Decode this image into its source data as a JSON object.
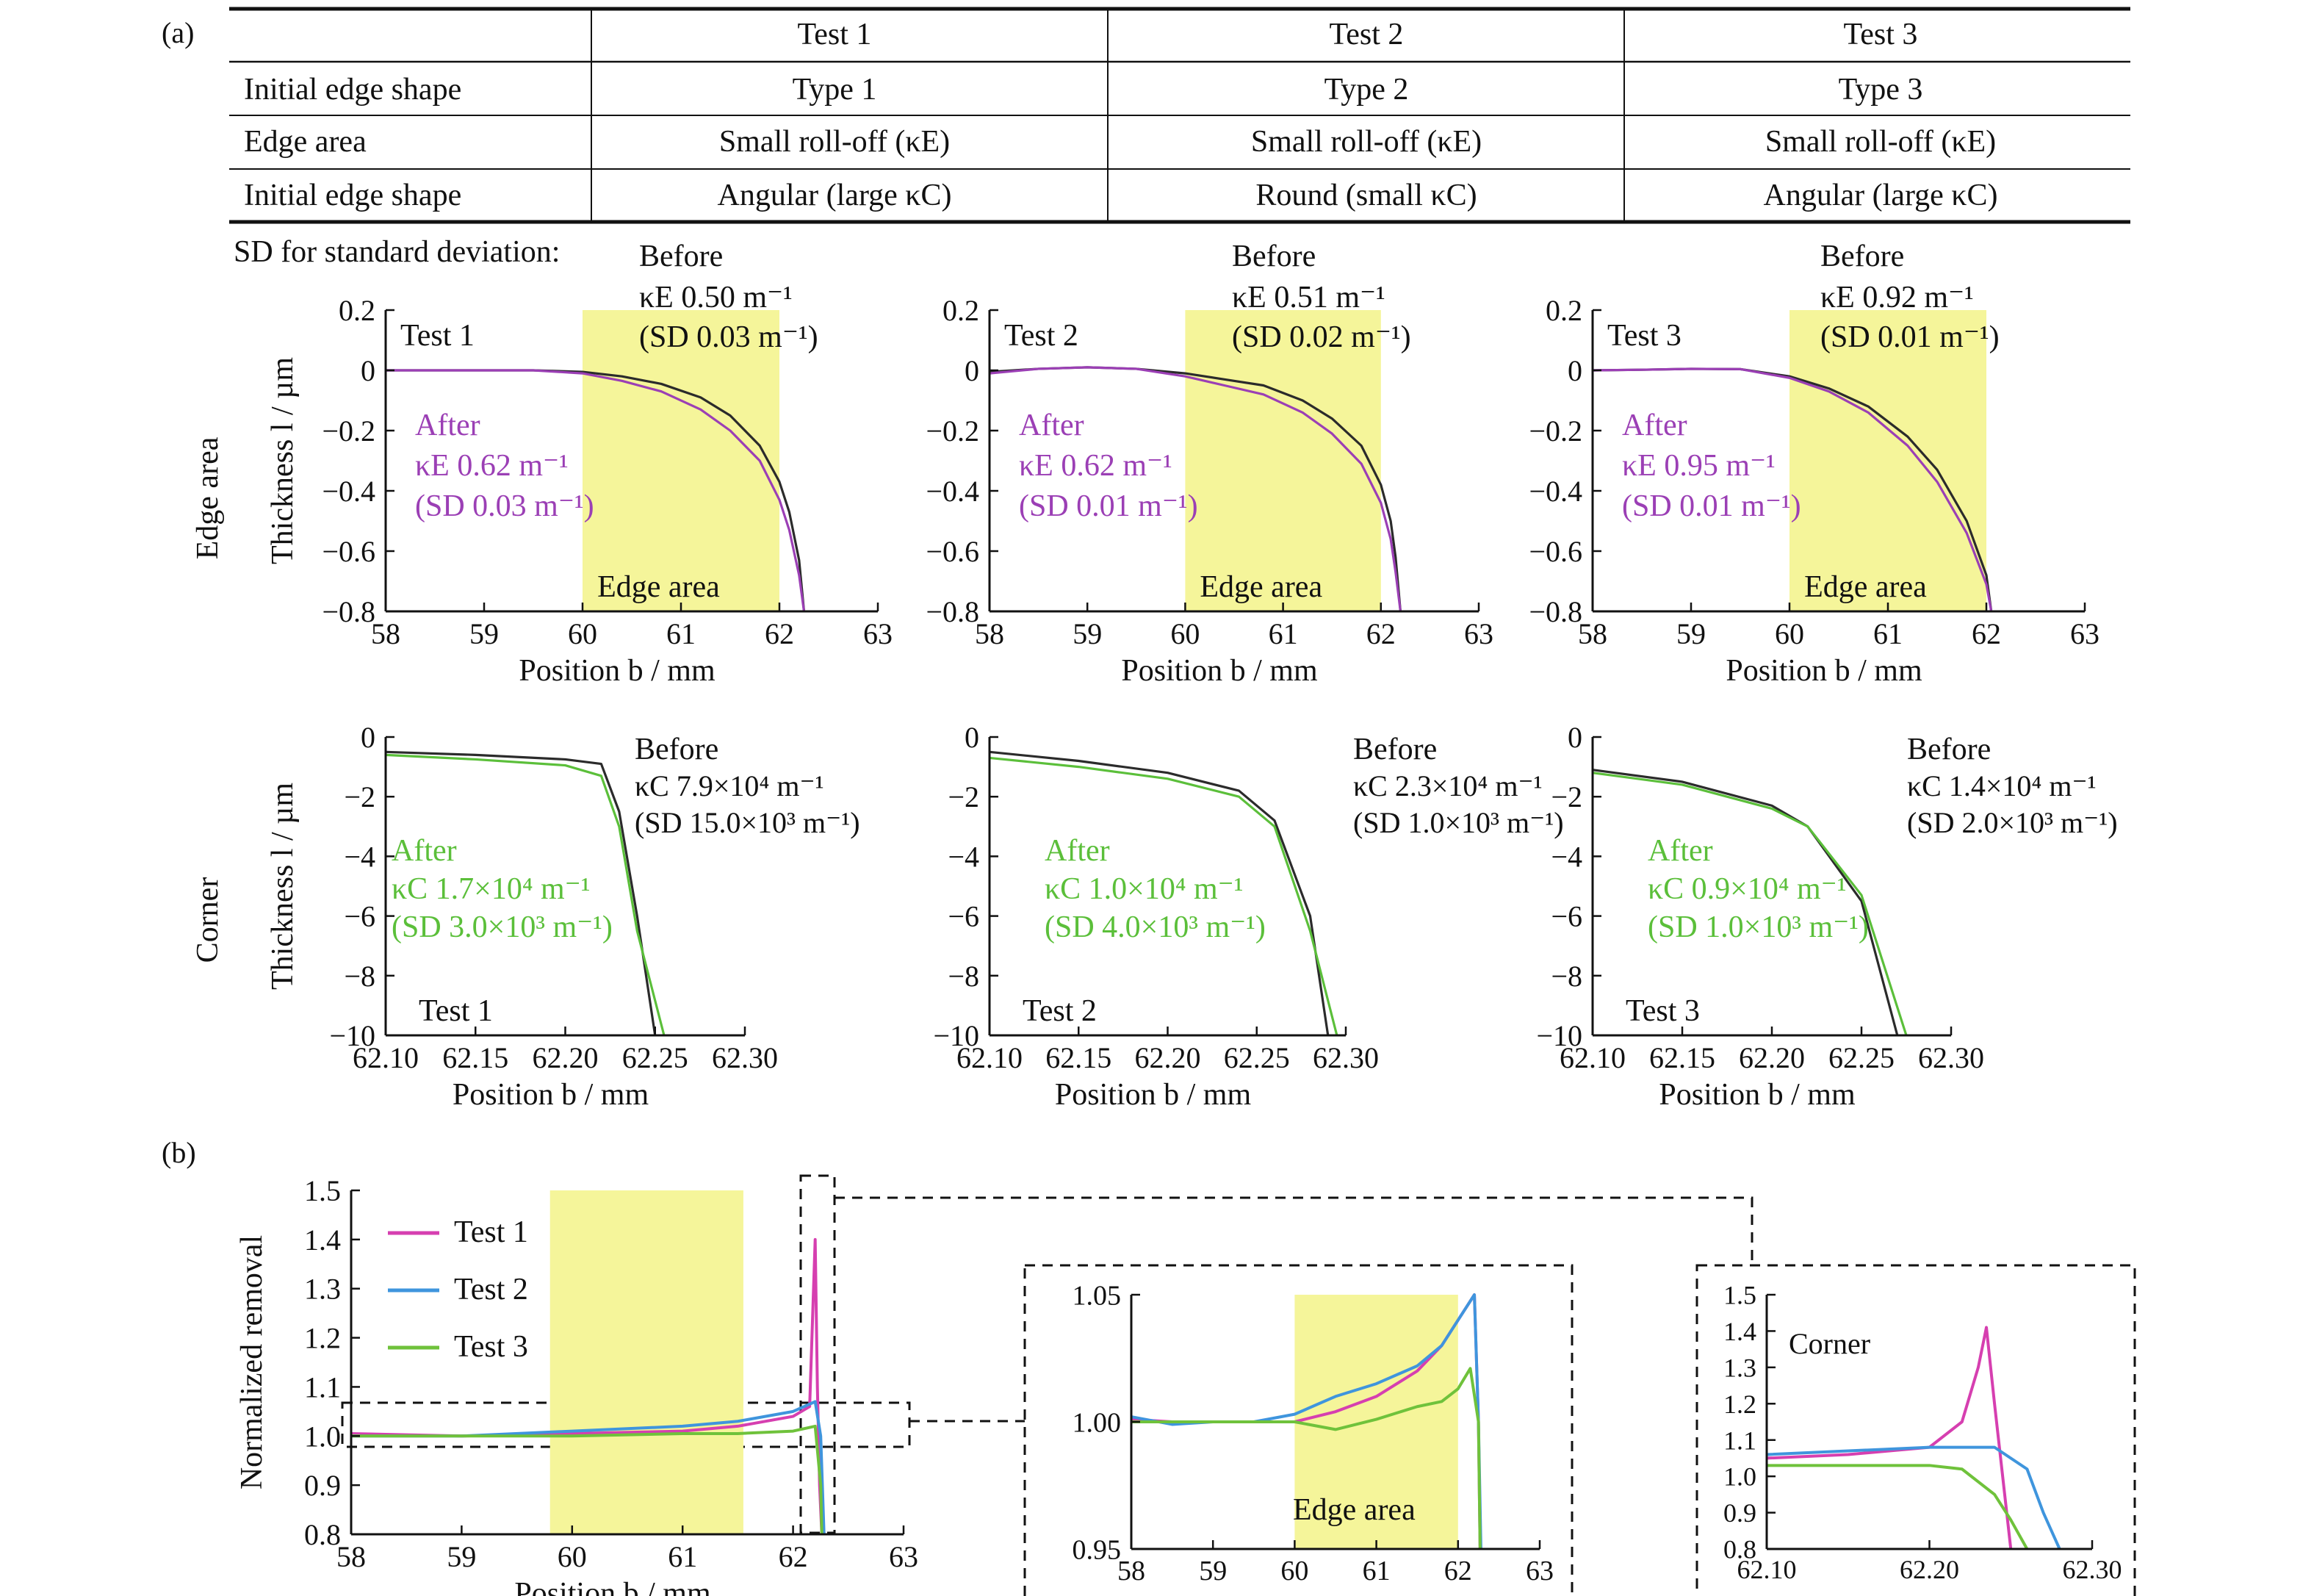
{
  "panel_a_label": "(a)",
  "panel_b_label": "(b)",
  "table": {
    "headers": [
      "",
      "Test 1",
      "Test 2",
      "Test 3"
    ],
    "rows": [
      [
        "Initial edge shape",
        "Type 1",
        "Type 2",
        "Type 3"
      ],
      [
        "Edge area",
        "Small roll-off (κE)",
        "Small roll-off (κE)",
        "Small roll-off (κE)"
      ],
      [
        "Initial edge shape",
        "Angular (large κC)",
        "Round (small κC)",
        "Angular (large κC)"
      ]
    ]
  },
  "sd_note": "SD for standard deviation:",
  "row_labels": {
    "edge": "Edge area",
    "corner": "Corner"
  },
  "ylabel_thickness": "Thickness l / µm",
  "xlabel": "Position b / mm",
  "ylabel_removal": "Normalized removal",
  "shade_label": "Edge area",
  "before_word": "Before",
  "after_word": "After",
  "colors": {
    "before": "#2b2b2b",
    "after_edge": "#9b3fb5",
    "after_corner": "#5bbf3a",
    "shade": "#f5f59a",
    "test1": "#d63fb0",
    "test2": "#3f95dd",
    "test3": "#6fc23b"
  },
  "edge_plots": [
    {
      "test": "Test 1",
      "before_k": "κE 0.50 m⁻¹",
      "before_sd": "(SD 0.03 m⁻¹)",
      "after_k": "κE 0.62 m⁻¹",
      "after_sd": "(SD 0.03 m⁻¹)"
    },
    {
      "test": "Test 2",
      "before_k": "κE 0.51 m⁻¹",
      "before_sd": "(SD 0.02 m⁻¹)",
      "after_k": "κE 0.62 m⁻¹",
      "after_sd": "(SD 0.01 m⁻¹)"
    },
    {
      "test": "Test 3",
      "before_k": "κE 0.92 m⁻¹",
      "before_sd": "(SD 0.01 m⁻¹)",
      "after_k": "κE 0.95 m⁻¹",
      "after_sd": "(SD 0.01 m⁻¹)"
    }
  ],
  "corner_plots": [
    {
      "test": "Test 1",
      "before_k": "κC 7.9×10⁴ m⁻¹",
      "before_sd": "(SD 15.0×10³ m⁻¹)",
      "after_k": "κC 1.7×10⁴ m⁻¹",
      "after_sd": "(SD 3.0×10³ m⁻¹)"
    },
    {
      "test": "Test 2",
      "before_k": "κC 2.3×10⁴ m⁻¹",
      "before_sd": "(SD 1.0×10³ m⁻¹)",
      "after_k": "κC 1.0×10⁴ m⁻¹",
      "after_sd": "(SD 4.0×10³ m⁻¹)"
    },
    {
      "test": "Test 3",
      "before_k": "κC 1.4×10⁴ m⁻¹",
      "before_sd": "(SD 2.0×10³ m⁻¹)",
      "after_k": "κC 0.9×10⁴ m⁻¹",
      "after_sd": "(SD 1.0×10³ m⁻¹)"
    }
  ],
  "removal_legend": [
    "Test 1",
    "Test 2",
    "Test 3"
  ],
  "corner_inset_label": "Corner",
  "chart_data": [
    {
      "type": "line",
      "title": "Test 1",
      "xlim": [
        58,
        63
      ],
      "ylim": [
        -0.8,
        0.2
      ],
      "xticks": [
        "58",
        "59",
        "60",
        "61",
        "62",
        "63"
      ],
      "yticks": [
        "0.2",
        "0",
        "−0.2",
        "−0.4",
        "−0.6",
        "−0.8"
      ],
      "shade": [
        60,
        62
      ],
      "series": [
        {
          "name": "Before",
          "x": [
            58,
            58.5,
            59,
            59.5,
            60,
            60.4,
            60.8,
            61.2,
            61.5,
            61.8,
            62.0,
            62.1,
            62.2,
            62.25
          ],
          "y": [
            0,
            0,
            0,
            0,
            -0.005,
            -0.02,
            -0.045,
            -0.09,
            -0.15,
            -0.25,
            -0.37,
            -0.47,
            -0.63,
            -0.8
          ]
        },
        {
          "name": "After",
          "x": [
            58,
            58.5,
            59,
            59.5,
            60,
            60.4,
            60.8,
            61.2,
            61.5,
            61.8,
            62.0,
            62.1,
            62.2,
            62.25
          ],
          "y": [
            0,
            0,
            0,
            0,
            -0.01,
            -0.035,
            -0.07,
            -0.13,
            -0.2,
            -0.3,
            -0.43,
            -0.53,
            -0.68,
            -0.8
          ]
        }
      ]
    },
    {
      "type": "line",
      "title": "Test 2",
      "xlim": [
        58,
        63
      ],
      "ylim": [
        -0.8,
        0.2
      ],
      "xticks": [
        "58",
        "59",
        "60",
        "61",
        "62",
        "63"
      ],
      "yticks": [
        "0.2",
        "0",
        "−0.2",
        "−0.4",
        "−0.6",
        "−0.8"
      ],
      "shade": [
        60,
        62
      ],
      "series": [
        {
          "name": "Before",
          "x": [
            58,
            58.5,
            59,
            59.5,
            60,
            60.4,
            60.8,
            61.2,
            61.5,
            61.8,
            62.0,
            62.1,
            62.15,
            62.2
          ],
          "y": [
            -0.005,
            0.005,
            0.01,
            0.005,
            -0.01,
            -0.03,
            -0.05,
            -0.1,
            -0.16,
            -0.25,
            -0.38,
            -0.5,
            -0.62,
            -0.8
          ]
        },
        {
          "name": "After",
          "x": [
            58,
            58.5,
            59,
            59.5,
            60,
            60.4,
            60.8,
            61.2,
            61.5,
            61.8,
            62.0,
            62.1,
            62.15,
            62.2
          ],
          "y": [
            -0.01,
            0.005,
            0.01,
            0.005,
            -0.02,
            -0.05,
            -0.08,
            -0.14,
            -0.21,
            -0.31,
            -0.44,
            -0.56,
            -0.67,
            -0.8
          ]
        }
      ]
    },
    {
      "type": "line",
      "title": "Test 3",
      "xlim": [
        58,
        63
      ],
      "ylim": [
        -0.8,
        0.2
      ],
      "xticks": [
        "58",
        "59",
        "60",
        "61",
        "62",
        "63"
      ],
      "yticks": [
        "0.2",
        "0",
        "−0.2",
        "−0.4",
        "−0.6",
        "−0.8"
      ],
      "shade": [
        60,
        62
      ],
      "series": [
        {
          "name": "Before",
          "x": [
            58,
            58.5,
            59,
            59.5,
            60,
            60.4,
            60.8,
            61.2,
            61.5,
            61.8,
            62.0,
            62.05
          ],
          "y": [
            0,
            0.002,
            0.005,
            0.004,
            -0.02,
            -0.06,
            -0.12,
            -0.22,
            -0.33,
            -0.5,
            -0.68,
            -0.8
          ]
        },
        {
          "name": "After",
          "x": [
            58,
            58.5,
            59,
            59.5,
            60,
            60.4,
            60.8,
            61.2,
            61.5,
            61.8,
            62.0,
            62.05
          ],
          "y": [
            0,
            0.002,
            0.005,
            0.004,
            -0.025,
            -0.07,
            -0.14,
            -0.25,
            -0.37,
            -0.54,
            -0.71,
            -0.8
          ]
        }
      ]
    },
    {
      "type": "line",
      "title": "Test 1",
      "xlim": [
        62.1,
        62.3
      ],
      "ylim": [
        -10,
        0
      ],
      "xticks": [
        "62.10",
        "62.15",
        "62.20",
        "62.25",
        "62.30"
      ],
      "yticks": [
        "0",
        "−2",
        "−4",
        "−6",
        "−8",
        "−10"
      ],
      "series": [
        {
          "name": "Before",
          "x": [
            62.1,
            62.15,
            62.2,
            62.22,
            62.23,
            62.24,
            62.25
          ],
          "y": [
            -0.5,
            -0.6,
            -0.75,
            -0.9,
            -2.5,
            -6,
            -10
          ]
        },
        {
          "name": "After",
          "x": [
            62.1,
            62.15,
            62.2,
            62.22,
            62.23,
            62.24,
            62.255
          ],
          "y": [
            -0.6,
            -0.75,
            -0.95,
            -1.3,
            -3,
            -6.5,
            -10
          ]
        }
      ]
    },
    {
      "type": "line",
      "title": "Test 2",
      "xlim": [
        62.1,
        62.3
      ],
      "ylim": [
        -10,
        0
      ],
      "xticks": [
        "62.10",
        "62.15",
        "62.20",
        "62.25",
        "62.30"
      ],
      "yticks": [
        "0",
        "−2",
        "−4",
        "−6",
        "−8",
        "−10"
      ],
      "series": [
        {
          "name": "Before",
          "x": [
            62.1,
            62.15,
            62.2,
            62.24,
            62.26,
            62.28,
            62.29
          ],
          "y": [
            -0.5,
            -0.8,
            -1.2,
            -1.8,
            -2.8,
            -6,
            -10
          ]
        },
        {
          "name": "After",
          "x": [
            62.1,
            62.15,
            62.2,
            62.24,
            62.26,
            62.28,
            62.295
          ],
          "y": [
            -0.7,
            -1,
            -1.4,
            -2,
            -3,
            -6.5,
            -10
          ]
        }
      ]
    },
    {
      "type": "line",
      "title": "Test 3",
      "xlim": [
        62.1,
        62.3
      ],
      "ylim": [
        -10,
        0
      ],
      "xticks": [
        "62.10",
        "62.15",
        "62.20",
        "62.25",
        "62.30"
      ],
      "yticks": [
        "0",
        "−2",
        "−4",
        "−6",
        "−8",
        "−10"
      ],
      "series": [
        {
          "name": "Before",
          "x": [
            62.1,
            62.15,
            62.2,
            62.22,
            62.25,
            62.27
          ],
          "y": [
            -1.1,
            -1.5,
            -2.3,
            -3,
            -5.5,
            -10
          ]
        },
        {
          "name": "After",
          "x": [
            62.1,
            62.15,
            62.2,
            62.22,
            62.25,
            62.275
          ],
          "y": [
            -1.2,
            -1.6,
            -2.4,
            -3,
            -5.3,
            -10
          ]
        }
      ]
    },
    {
      "type": "line",
      "title": "",
      "xlim": [
        58,
        63
      ],
      "ylim": [
        0.8,
        1.5
      ],
      "xticks": [
        "58",
        "59",
        "60",
        "61",
        "62",
        "63"
      ],
      "yticks": [
        "1.5",
        "1.4",
        "1.3",
        "1.2",
        "1.1",
        "1.0",
        "0.9",
        "0.8"
      ],
      "shade": [
        59.8,
        61.55
      ],
      "series": [
        {
          "name": "Test 1",
          "x": [
            58,
            59,
            60,
            61,
            61.5,
            62,
            62.15,
            62.2,
            62.22,
            62.24,
            62.26
          ],
          "y": [
            1.005,
            1.0,
            1.005,
            1.01,
            1.02,
            1.04,
            1.06,
            1.4,
            1.1,
            0.9,
            0.8
          ]
        },
        {
          "name": "Test 2",
          "x": [
            58,
            59,
            60,
            61,
            61.5,
            62,
            62.2,
            62.25,
            62.28
          ],
          "y": [
            1.0,
            1.0,
            1.01,
            1.02,
            1.03,
            1.05,
            1.07,
            1.0,
            0.8
          ]
        },
        {
          "name": "Test 3",
          "x": [
            58,
            59,
            60,
            61,
            61.5,
            62,
            62.2,
            62.25,
            62.26
          ],
          "y": [
            1.0,
            1.0,
            1.0,
            1.005,
            1.005,
            1.01,
            1.02,
            0.9,
            0.8
          ]
        }
      ]
    },
    {
      "type": "line",
      "title": "",
      "xlim": [
        58,
        63
      ],
      "ylim": [
        0.95,
        1.05
      ],
      "xticks": [
        "58",
        "59",
        "60",
        "61",
        "62",
        "63"
      ],
      "yticks": [
        "1.05",
        "1.00",
        "0.95"
      ],
      "shade": [
        60,
        62
      ],
      "series": [
        {
          "name": "Test 1",
          "x": [
            58,
            58.5,
            59,
            59.5,
            60,
            60.5,
            61,
            61.5,
            61.8,
            62,
            62.2,
            62.25,
            62.27
          ],
          "y": [
            1.001,
            1.0,
            1.0,
            1.0,
            1.0,
            1.004,
            1.01,
            1.02,
            1.03,
            1.04,
            1.05,
            1.0,
            0.95
          ]
        },
        {
          "name": "Test 2",
          "x": [
            58,
            58.5,
            59,
            59.5,
            60,
            60.5,
            61,
            61.5,
            61.8,
            62,
            62.2,
            62.25,
            62.28
          ],
          "y": [
            1.002,
            0.999,
            1.0,
            1.0,
            1.003,
            1.01,
            1.015,
            1.022,
            1.03,
            1.04,
            1.05,
            1.0,
            0.95
          ]
        },
        {
          "name": "Test 3",
          "x": [
            58,
            58.5,
            59,
            59.5,
            60,
            60.5,
            61,
            61.5,
            61.8,
            62,
            62.15,
            62.25,
            62.27
          ],
          "y": [
            1.0,
            1.0,
            1.0,
            1.0,
            1.0,
            0.997,
            1.001,
            1.006,
            1.008,
            1.013,
            1.021,
            1.0,
            0.95
          ]
        }
      ]
    },
    {
      "type": "line",
      "title": "Corner",
      "xlim": [
        62.1,
        62.3
      ],
      "ylim": [
        0.8,
        1.5
      ],
      "xticks": [
        "62.10",
        "62.20",
        "62.30"
      ],
      "yticks": [
        "1.5",
        "1.4",
        "1.3",
        "1.2",
        "1.1",
        "1.0",
        "0.9",
        "0.8"
      ],
      "series": [
        {
          "name": "Test 1",
          "x": [
            62.1,
            62.15,
            62.2,
            62.22,
            62.23,
            62.235,
            62.24,
            62.25
          ],
          "y": [
            1.05,
            1.06,
            1.08,
            1.15,
            1.3,
            1.41,
            1.2,
            0.8
          ]
        },
        {
          "name": "Test 2",
          "x": [
            62.1,
            62.15,
            62.2,
            62.24,
            62.26,
            62.27,
            62.28
          ],
          "y": [
            1.06,
            1.07,
            1.08,
            1.08,
            1.02,
            0.9,
            0.8
          ]
        },
        {
          "name": "Test 3",
          "x": [
            62.1,
            62.15,
            62.2,
            62.22,
            62.24,
            62.25,
            62.26
          ],
          "y": [
            1.03,
            1.03,
            1.03,
            1.02,
            0.95,
            0.88,
            0.8
          ]
        }
      ]
    }
  ]
}
